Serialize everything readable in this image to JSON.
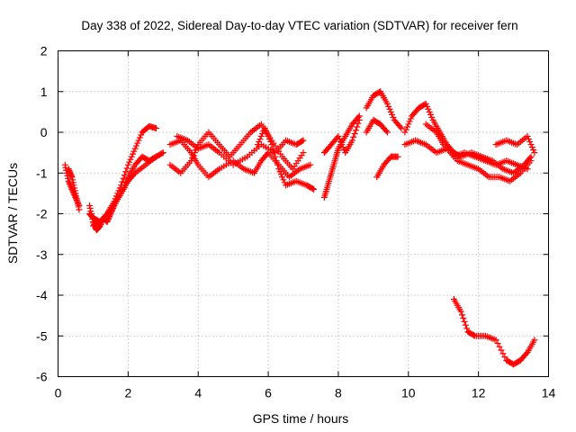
{
  "chart_data": {
    "type": "scatter",
    "title": "Day 338 of 2022, Sidereal Day-to-day VTEC variation (SDTVAR) for receiver fern",
    "xlabel": "GPS time / hours",
    "ylabel": "SDTVAR / TECUs",
    "xlim": [
      0,
      14
    ],
    "ylim": [
      -6,
      2
    ],
    "xticks": [
      0,
      2,
      4,
      6,
      8,
      10,
      12,
      14
    ],
    "yticks": [
      -6,
      -5,
      -4,
      -3,
      -2,
      -1,
      0,
      1,
      2
    ],
    "grid": true,
    "marker": "plus",
    "color": "#ff0000",
    "series": [
      {
        "name": "s1",
        "x": [
          0.2,
          0.3,
          0.4,
          0.5,
          0.6
        ],
        "y": [
          -0.8,
          -1.2,
          -1.4,
          -1.6,
          -1.8
        ]
      },
      {
        "name": "s2",
        "x": [
          0.3,
          0.4,
          0.5,
          0.6
        ],
        "y": [
          -0.9,
          -1.1,
          -1.5,
          -1.9
        ]
      },
      {
        "name": "s3",
        "x": [
          0.9,
          1.0,
          1.1,
          1.2,
          1.3,
          1.4,
          1.5,
          1.6,
          1.8,
          2.0,
          2.2,
          2.5,
          2.8,
          3.0
        ],
        "y": [
          -1.8,
          -2.2,
          -2.4,
          -2.3,
          -2.1,
          -2.2,
          -2.0,
          -1.8,
          -1.5,
          -1.2,
          -1.0,
          -0.8,
          -0.6,
          -0.5
        ]
      },
      {
        "name": "s4",
        "x": [
          0.9,
          1.0,
          1.2,
          1.4,
          1.6,
          1.8,
          2.0,
          2.2,
          2.4,
          2.6,
          2.8
        ],
        "y": [
          -2.0,
          -2.1,
          -2.2,
          -2.0,
          -1.7,
          -1.3,
          -0.8,
          -0.4,
          0.0,
          0.15,
          0.1
        ]
      },
      {
        "name": "s5",
        "x": [
          1.0,
          1.2,
          1.4,
          1.6,
          1.8,
          2.0,
          2.2,
          2.4,
          2.6,
          2.8
        ],
        "y": [
          -2.3,
          -2.2,
          -2.0,
          -1.8,
          -1.5,
          -1.1,
          -0.8,
          -0.6,
          -0.7,
          -0.6
        ]
      },
      {
        "name": "s6",
        "x": [
          3.2,
          3.5,
          3.8,
          4.0,
          4.3,
          4.6,
          5.0,
          5.3,
          5.6,
          5.8,
          6.0,
          6.3,
          6.6,
          6.9,
          7.2
        ],
        "y": [
          -0.3,
          -0.2,
          -0.5,
          -0.8,
          -1.1,
          -0.9,
          -0.7,
          -0.9,
          -1.0,
          -0.7,
          -0.5,
          -0.8,
          -1.1,
          -0.9,
          -0.8
        ]
      },
      {
        "name": "s7",
        "x": [
          3.2,
          3.5,
          3.8,
          4.0,
          4.3,
          4.6,
          4.9,
          5.2,
          5.5,
          5.8,
          6.1,
          6.4,
          6.7,
          7.0
        ],
        "y": [
          -0.8,
          -1.0,
          -0.7,
          -0.3,
          0.0,
          -0.3,
          -0.6,
          -0.3,
          0.0,
          0.2,
          -0.2,
          -0.6,
          -0.9,
          -0.5
        ]
      },
      {
        "name": "s8",
        "x": [
          3.4,
          3.7,
          4.0,
          4.3,
          4.6,
          5.0,
          5.4,
          5.8,
          6.2,
          6.5,
          6.8,
          7.0
        ],
        "y": [
          -0.1,
          -0.2,
          -0.4,
          -0.3,
          -0.5,
          -0.8,
          -0.6,
          -0.3,
          -0.5,
          -0.2,
          -0.3,
          -0.2
        ]
      },
      {
        "name": "s9",
        "x": [
          5.7,
          5.9,
          6.1,
          6.3,
          6.5,
          6.8,
          7.1,
          7.3
        ],
        "y": [
          -0.3,
          0.1,
          -0.3,
          -0.9,
          -1.3,
          -1.2,
          -1.3,
          -1.4
        ]
      },
      {
        "name": "s10",
        "x": [
          7.6,
          7.7,
          7.8,
          7.9,
          8.0,
          8.2,
          8.4,
          8.6
        ],
        "y": [
          -1.6,
          -1.3,
          -1.0,
          -0.7,
          -0.4,
          -0.1,
          0.2,
          0.4
        ]
      },
      {
        "name": "s11",
        "x": [
          7.6,
          7.8,
          8.0,
          8.2,
          8.4,
          8.6
        ],
        "y": [
          -0.5,
          -0.3,
          -0.1,
          -0.5,
          -0.2,
          0.3
        ]
      },
      {
        "name": "s12",
        "x": [
          8.8,
          9.0,
          9.2,
          9.4,
          9.6,
          9.8
        ],
        "y": [
          0.6,
          0.9,
          1.0,
          0.7,
          0.3,
          0.1
        ]
      },
      {
        "name": "s13",
        "x": [
          8.8,
          9.0,
          9.2,
          9.4
        ],
        "y": [
          0.0,
          0.3,
          0.2,
          0.0
        ]
      },
      {
        "name": "s14",
        "x": [
          9.1,
          9.3,
          9.5,
          9.7
        ],
        "y": [
          -1.1,
          -0.8,
          -0.6,
          -0.6
        ]
      },
      {
        "name": "s15",
        "x": [
          9.9,
          10.1,
          10.3,
          10.5,
          10.7,
          10.9,
          11.1,
          11.3,
          11.5,
          11.8,
          12.1,
          12.4,
          12.7,
          13.0,
          13.3,
          13.5
        ],
        "y": [
          0.0,
          0.4,
          0.6,
          0.7,
          0.3,
          0.0,
          -0.3,
          -0.5,
          -0.6,
          -0.5,
          -0.6,
          -0.7,
          -0.9,
          -1.0,
          -0.8,
          -0.6
        ]
      },
      {
        "name": "s16",
        "x": [
          9.9,
          10.2,
          10.5,
          10.8,
          11.1,
          11.4,
          11.7,
          12.0,
          12.3,
          12.6,
          12.9,
          13.2,
          13.5
        ],
        "y": [
          -0.3,
          -0.2,
          -0.3,
          -0.5,
          -0.4,
          -0.7,
          -0.8,
          -0.9,
          -1.1,
          -1.1,
          -1.2,
          -1.0,
          -0.7
        ]
      },
      {
        "name": "s17",
        "x": [
          10.5,
          10.8,
          11.0,
          11.3,
          11.6,
          11.9,
          12.2,
          12.5,
          12.8,
          13.1,
          13.4
        ],
        "y": [
          0.2,
          0.0,
          -0.3,
          -0.6,
          -0.5,
          -0.6,
          -0.7,
          -0.8,
          -0.7,
          -0.8,
          -0.9
        ]
      },
      {
        "name": "s18",
        "x": [
          12.5,
          12.8,
          13.1,
          13.4,
          13.6
        ],
        "y": [
          -0.3,
          -0.2,
          -0.3,
          -0.1,
          -0.5
        ]
      },
      {
        "name": "s19",
        "x": [
          11.3,
          11.5,
          11.7,
          11.9,
          12.2,
          12.5,
          12.8,
          13.0,
          13.2,
          13.4,
          13.6
        ],
        "y": [
          -4.1,
          -4.4,
          -4.9,
          -5.0,
          -5.0,
          -5.1,
          -5.6,
          -5.7,
          -5.6,
          -5.4,
          -5.1
        ]
      }
    ]
  }
}
